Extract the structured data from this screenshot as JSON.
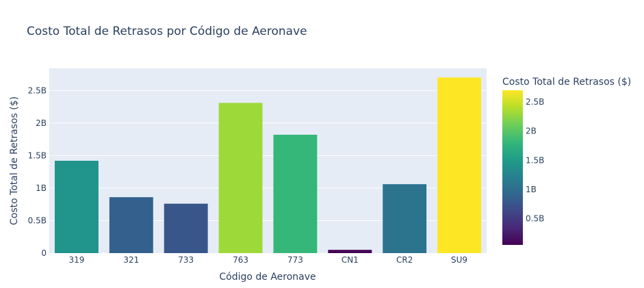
{
  "chart_data": {
    "type": "bar",
    "title": "Costo Total de Retrasos por Código de Aeronave",
    "xlabel": "Código de Aeronave",
    "ylabel": "Costo Total de Retrasos ($)",
    "categories": [
      "319",
      "321",
      "733",
      "763",
      "773",
      "CN1",
      "CR2",
      "SU9"
    ],
    "values": [
      1.42,
      0.86,
      0.76,
      2.31,
      1.82,
      0.05,
      1.06,
      2.7
    ],
    "value_unit": "billions USD",
    "ylim": [
      0,
      2.84
    ],
    "yticks": [
      0,
      0.5,
      1,
      1.5,
      2,
      2.5
    ],
    "ytick_labels": [
      "0",
      "0.5B",
      "1B",
      "1.5B",
      "2B",
      "2.5B"
    ],
    "grid": true,
    "colorscale": "viridis",
    "colorbar": {
      "title": "Costo Total de Retrasos ($)",
      "range": [
        0.05,
        2.7
      ],
      "ticks": [
        0.5,
        1,
        1.5,
        2,
        2.5
      ],
      "tick_labels": [
        "0.5B",
        "1B",
        "1.5B",
        "2B",
        "2.5B"
      ]
    },
    "colors": {
      "plot_bg": "#e5ecf6",
      "grid": "#ffffff",
      "text": "#2a3f5f"
    }
  }
}
